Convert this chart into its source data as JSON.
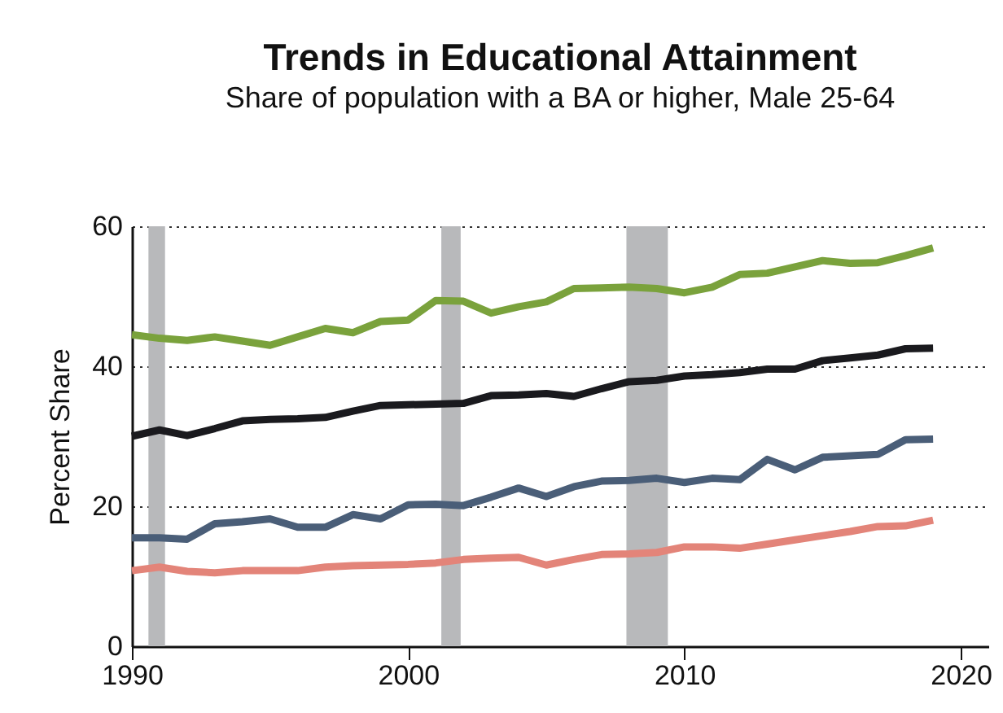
{
  "chart_data": {
    "type": "line",
    "title": "Trends in Educational Attainment",
    "subtitle": "Share of population with a BA or higher, Male 25-64",
    "ylabel": "Percent Share",
    "x": [
      1990,
      1991,
      1992,
      1993,
      1994,
      1995,
      1996,
      1997,
      1998,
      1999,
      2000,
      2001,
      2002,
      2003,
      2004,
      2005,
      2006,
      2007,
      2008,
      2009,
      2010,
      2011,
      2012,
      2013,
      2014,
      2015,
      2016,
      2017,
      2018,
      2019
    ],
    "series": [
      {
        "color": "#7aa23c",
        "values": [
          44.5,
          44,
          43.7,
          44.2,
          43.6,
          43,
          44.2,
          45.4,
          44.8,
          46.4,
          46.6,
          49.4,
          49.3,
          47.6,
          48.5,
          49.2,
          51.1,
          51.2,
          51.3,
          51.1,
          50.5,
          51.3,
          53.1,
          53.3,
          54.2,
          55.1,
          54.7,
          54.8,
          55.8,
          56.9
        ]
      },
      {
        "color": "#1a1a1e",
        "values": [
          30,
          30.9,
          30.1,
          31.1,
          32.2,
          32.4,
          32.5,
          32.7,
          33.6,
          34.4,
          34.5,
          34.6,
          34.7,
          35.8,
          35.9,
          36.1,
          35.7,
          36.8,
          37.8,
          38,
          38.6,
          38.8,
          39.1,
          39.6,
          39.6,
          40.8,
          41.2,
          41.6,
          42.5,
          42.6
        ]
      },
      {
        "color": "#4a5e78",
        "values": [
          15.5,
          15.5,
          15.3,
          17.5,
          17.8,
          18.2,
          17,
          17,
          18.8,
          18.2,
          20.2,
          20.3,
          20.1,
          21.3,
          22.6,
          21.4,
          22.8,
          23.6,
          23.7,
          24,
          23.4,
          24,
          23.8,
          26.7,
          25.2,
          27,
          27.2,
          27.4,
          29.5,
          29.6
        ]
      },
      {
        "color": "#e38479",
        "values": [
          10.8,
          11.3,
          10.7,
          10.5,
          10.8,
          10.8,
          10.8,
          11.3,
          11.5,
          11.6,
          11.7,
          11.9,
          12.4,
          12.6,
          12.7,
          11.6,
          12.4,
          13.1,
          13.2,
          13.4,
          14.2,
          14.2,
          14,
          14.6,
          15.2,
          15.8,
          16.4,
          17.1,
          17.2,
          18
        ]
      }
    ],
    "bands": [
      {
        "axis": "x",
        "from": 1990.6,
        "to": 1991.2,
        "color": "#b8b9bb"
      },
      {
        "axis": "x",
        "from": 2001.2,
        "to": 2001.9,
        "color": "#b8b9bb"
      },
      {
        "axis": "x",
        "from": 2007.9,
        "to": 2009.4,
        "color": "#b8b9bb"
      }
    ],
    "xlim": [
      1990,
      2021
    ],
    "xticks": [
      1990,
      2000,
      2010,
      2020
    ],
    "ylim": [
      0,
      60
    ],
    "yticks": [
      0,
      20,
      40,
      60
    ],
    "grid": "y",
    "marker": "none",
    "line_style": "solid"
  }
}
